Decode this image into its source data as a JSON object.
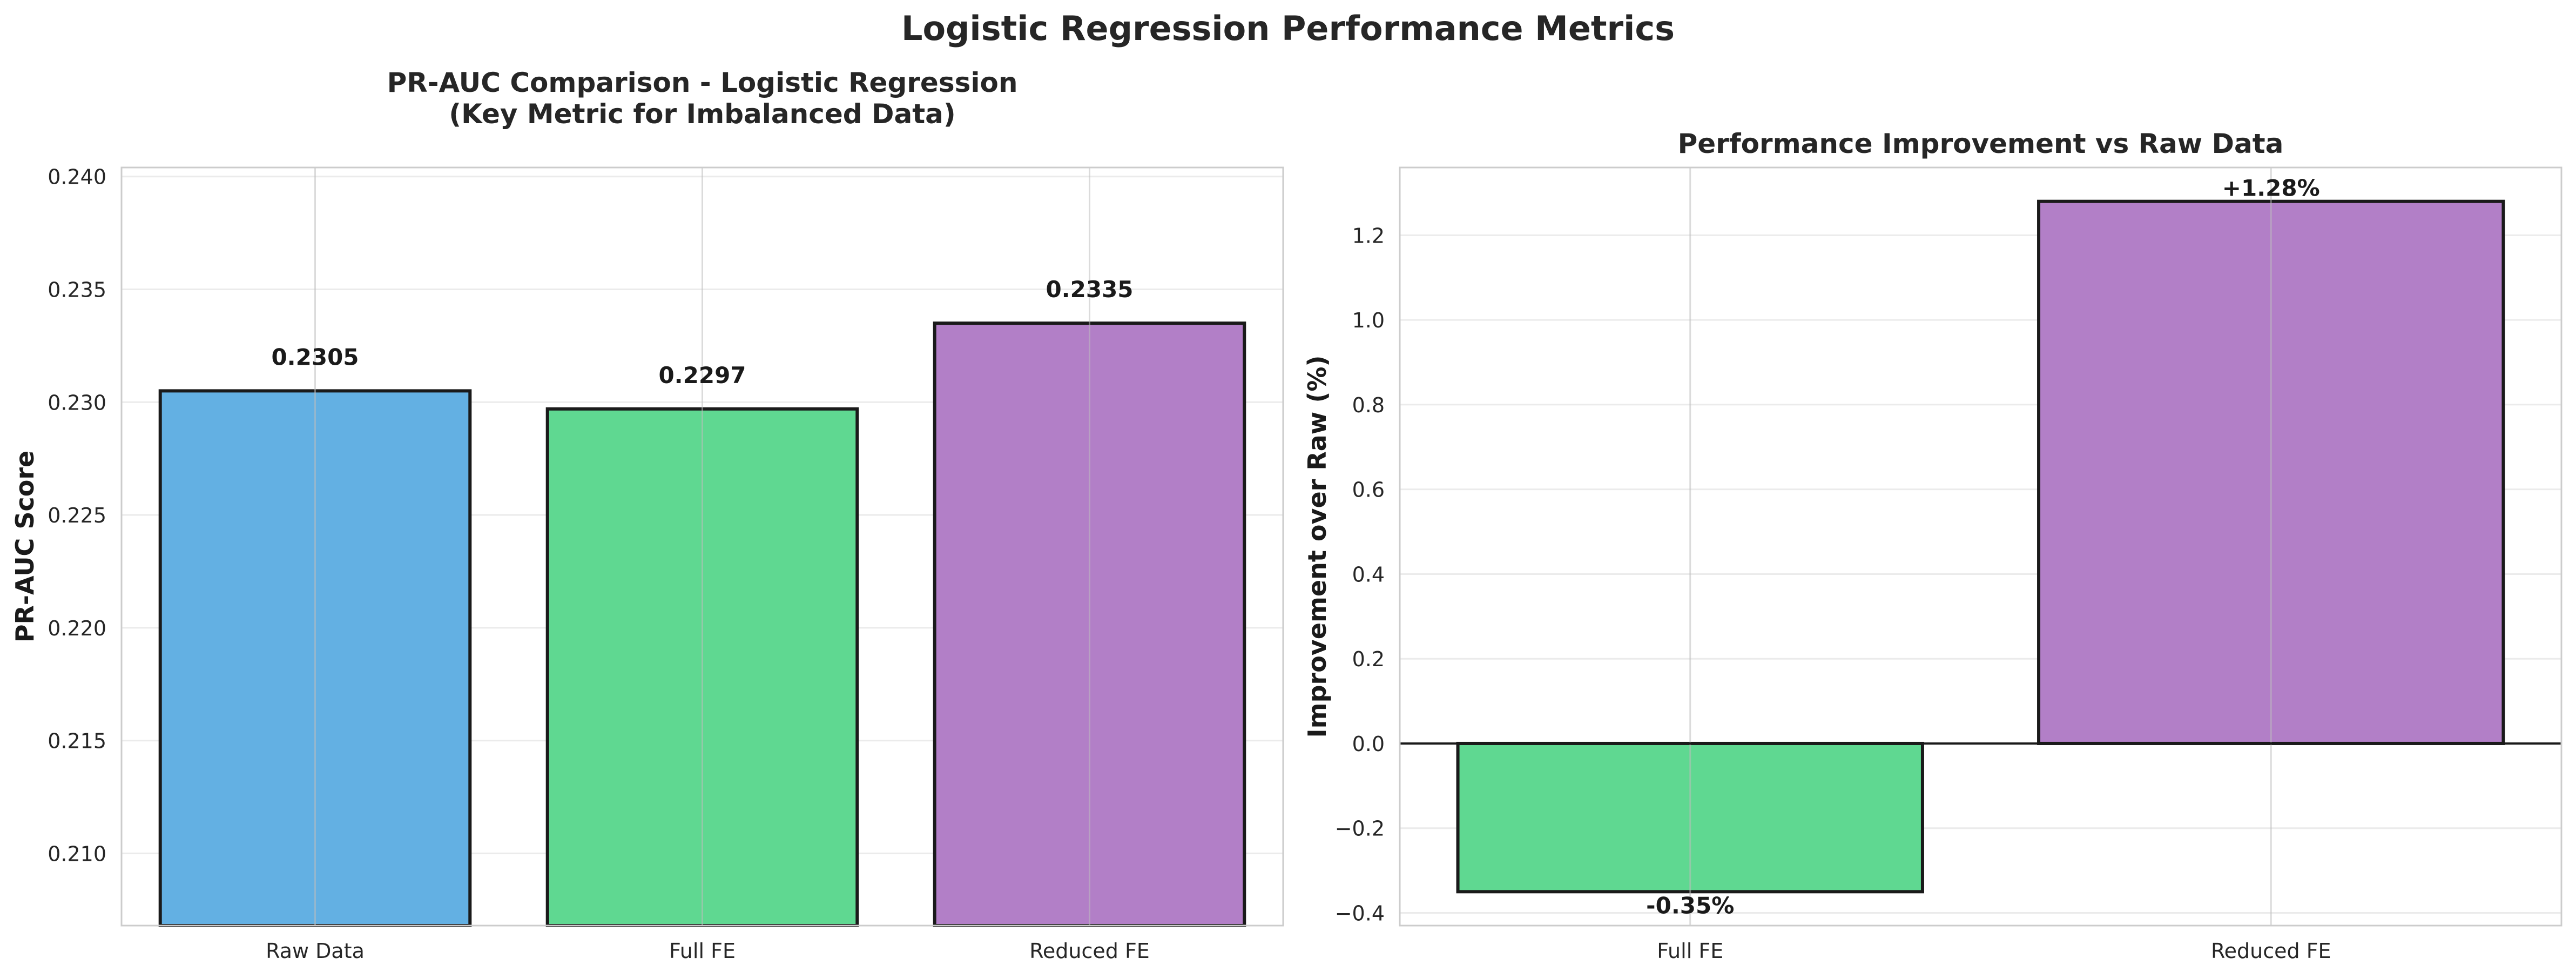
{
  "figure": {
    "suptitle": "Logistic Regression Performance Metrics"
  },
  "chart_data": [
    {
      "type": "bar",
      "title": "PR-AUC Comparison - Logistic Regression\n(Key Metric for Imbalanced Data)",
      "xlabel": "",
      "ylabel": "PR-AUC Score",
      "categories": [
        "Raw Data",
        "Full FE",
        "Reduced FE"
      ],
      "values": [
        0.2305,
        0.2297,
        0.2335
      ],
      "data_labels": [
        "0.2305",
        "0.2297",
        "0.2335"
      ],
      "colors": [
        "#5dade2",
        "#58d68d",
        "#af7ac5"
      ],
      "ylim": [
        0.2068,
        0.2404
      ],
      "yticks": [
        0.21,
        0.215,
        0.22,
        0.225,
        0.23,
        0.235,
        0.24
      ],
      "ytick_labels": [
        "0.210",
        "0.215",
        "0.220",
        "0.225",
        "0.230",
        "0.235",
        "0.240"
      ],
      "grid": true,
      "legend": "none"
    },
    {
      "type": "bar",
      "title": "Performance Improvement vs Raw Data",
      "xlabel": "",
      "ylabel": "Improvement over Raw (%)",
      "categories": [
        "Full FE",
        "Reduced FE"
      ],
      "values": [
        -0.35,
        1.28
      ],
      "data_labels": [
        "-0.35%",
        "+1.28%"
      ],
      "colors": [
        "#58d68d",
        "#af7ac5"
      ],
      "ylim": [
        -0.43,
        1.36
      ],
      "yticks": [
        -0.4,
        -0.2,
        0.0,
        0.2,
        0.4,
        0.6,
        0.8,
        1.0,
        1.2
      ],
      "ytick_labels": [
        "−0.4",
        "−0.2",
        "0.0",
        "0.2",
        "0.4",
        "0.6",
        "0.8",
        "1.0",
        "1.2"
      ],
      "baseline": 0,
      "grid": true,
      "legend": "none"
    }
  ]
}
